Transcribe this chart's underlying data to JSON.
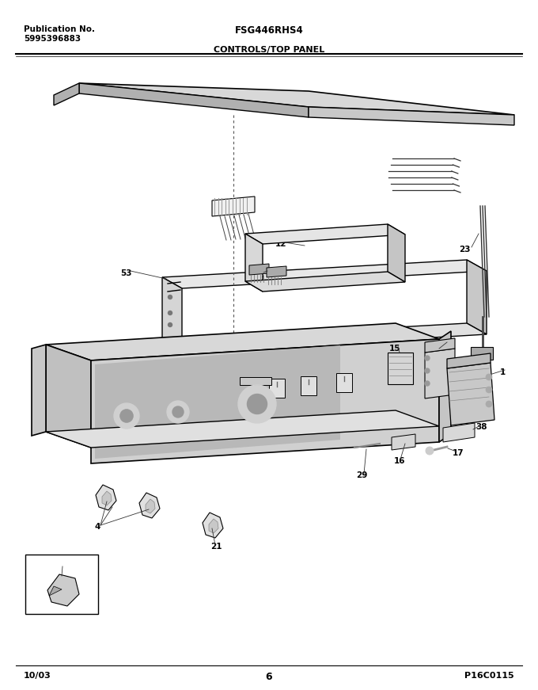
{
  "title_model": "FSG446RHS4",
  "title_section": "CONTROLS/TOP PANEL",
  "pub_no_label": "Publication No.",
  "pub_no_value": "5995396883",
  "date": "10/03",
  "page": "6",
  "image_code": "P16C0115",
  "bg_color": "#ffffff",
  "line_color": "#000000",
  "text_color": "#000000",
  "gray_light": "#d8d8d8",
  "gray_mid": "#b0b0b0",
  "gray_dark": "#888888"
}
